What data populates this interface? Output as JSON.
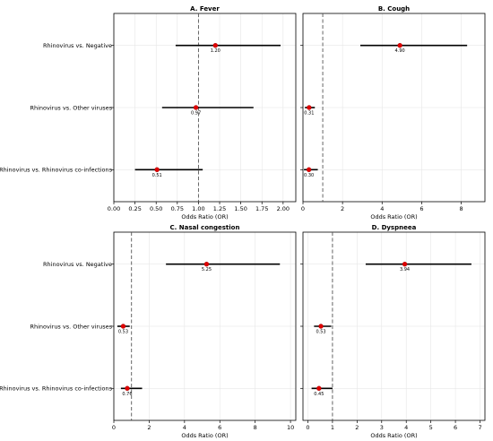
{
  "chart_data": [
    {
      "type": "forest",
      "title": "A. Fever",
      "xlabel": "Odds Ratio (OR)",
      "categories": [
        "Rhinovirus vs. Negative",
        "Rhinovirus vs. Other viruses",
        "Rhinovirus vs. Rhinovirus co-infections"
      ],
      "or": [
        1.2,
        0.97,
        0.51
      ],
      "ci_low": [
        0.73,
        0.57,
        0.25
      ],
      "ci_high": [
        1.97,
        1.65,
        1.05
      ],
      "labels": [
        "1.20",
        "0.97",
        "0.51"
      ],
      "xlim": [
        0,
        2.15
      ],
      "xticks": [
        0.0,
        0.25,
        0.5,
        0.75,
        1.0,
        1.25,
        1.5,
        1.75,
        2.0
      ],
      "xtick_labels": [
        "0.00",
        "0.25",
        "0.50",
        "0.75",
        "1.00",
        "1.25",
        "1.50",
        "1.75",
        "2.00"
      ],
      "reference_line": 1,
      "grid": true,
      "show_categories": true
    },
    {
      "type": "forest",
      "title": "B. Cough",
      "xlabel": "Odds Ratio (OR)",
      "categories": [
        "Rhinovirus vs. Negative",
        "Rhinovirus vs. Other viruses",
        "Rhinovirus vs. Rhinovirus co-infections"
      ],
      "or": [
        4.9,
        0.31,
        0.3
      ],
      "ci_low": [
        2.9,
        0.1,
        0.05
      ],
      "ci_high": [
        8.3,
        0.6,
        0.75
      ],
      "labels": [
        "4.90",
        "0.31",
        "0.30"
      ],
      "xlim": [
        0,
        9.2
      ],
      "xticks": [
        0,
        2,
        4,
        6,
        8
      ],
      "xtick_labels": [
        "0",
        "2",
        "4",
        "6",
        "8"
      ],
      "reference_line": 1,
      "grid": true,
      "show_categories": false
    },
    {
      "type": "forest",
      "title": "C. Nasal congestion",
      "xlabel": "Odds Ratio (OR)",
      "categories": [
        "Rhinovirus vs. Negative",
        "Rhinovirus vs. Other viruses",
        "Rhinovirus vs. Rhinovirus co-infections"
      ],
      "or": [
        5.25,
        0.53,
        0.76
      ],
      "ci_low": [
        2.95,
        0.2,
        0.4
      ],
      "ci_high": [
        9.4,
        0.9,
        1.6
      ],
      "labels": [
        "5.25",
        "0.53",
        "0.76"
      ],
      "xlim": [
        0,
        10.3
      ],
      "xticks": [
        0,
        2,
        4,
        6,
        8,
        10
      ],
      "xtick_labels": [
        "0",
        "2",
        "4",
        "6",
        "8",
        "10"
      ],
      "reference_line": 1,
      "grid": true,
      "show_categories": true
    },
    {
      "type": "forest",
      "title": "D. Dyspneea",
      "xlabel": "Odds Ratio (OR)",
      "categories": [
        "Rhinovirus vs. Negative",
        "Rhinovirus vs. Other viruses",
        "Rhinovirus vs. Rhinovirus co-infections"
      ],
      "or": [
        3.94,
        0.53,
        0.45
      ],
      "ci_low": [
        2.35,
        0.25,
        0.15
      ],
      "ci_high": [
        6.65,
        0.95,
        1.0
      ],
      "labels": [
        "3.94",
        "0.53",
        "0.45"
      ],
      "xlim": [
        -0.2,
        7.2
      ],
      "xticks": [
        0,
        1,
        2,
        3,
        4,
        5,
        6,
        7
      ],
      "xtick_labels": [
        "0",
        "1",
        "2",
        "3",
        "4",
        "5",
        "6",
        "7"
      ],
      "reference_line": 1,
      "grid": true,
      "show_categories": false
    }
  ]
}
